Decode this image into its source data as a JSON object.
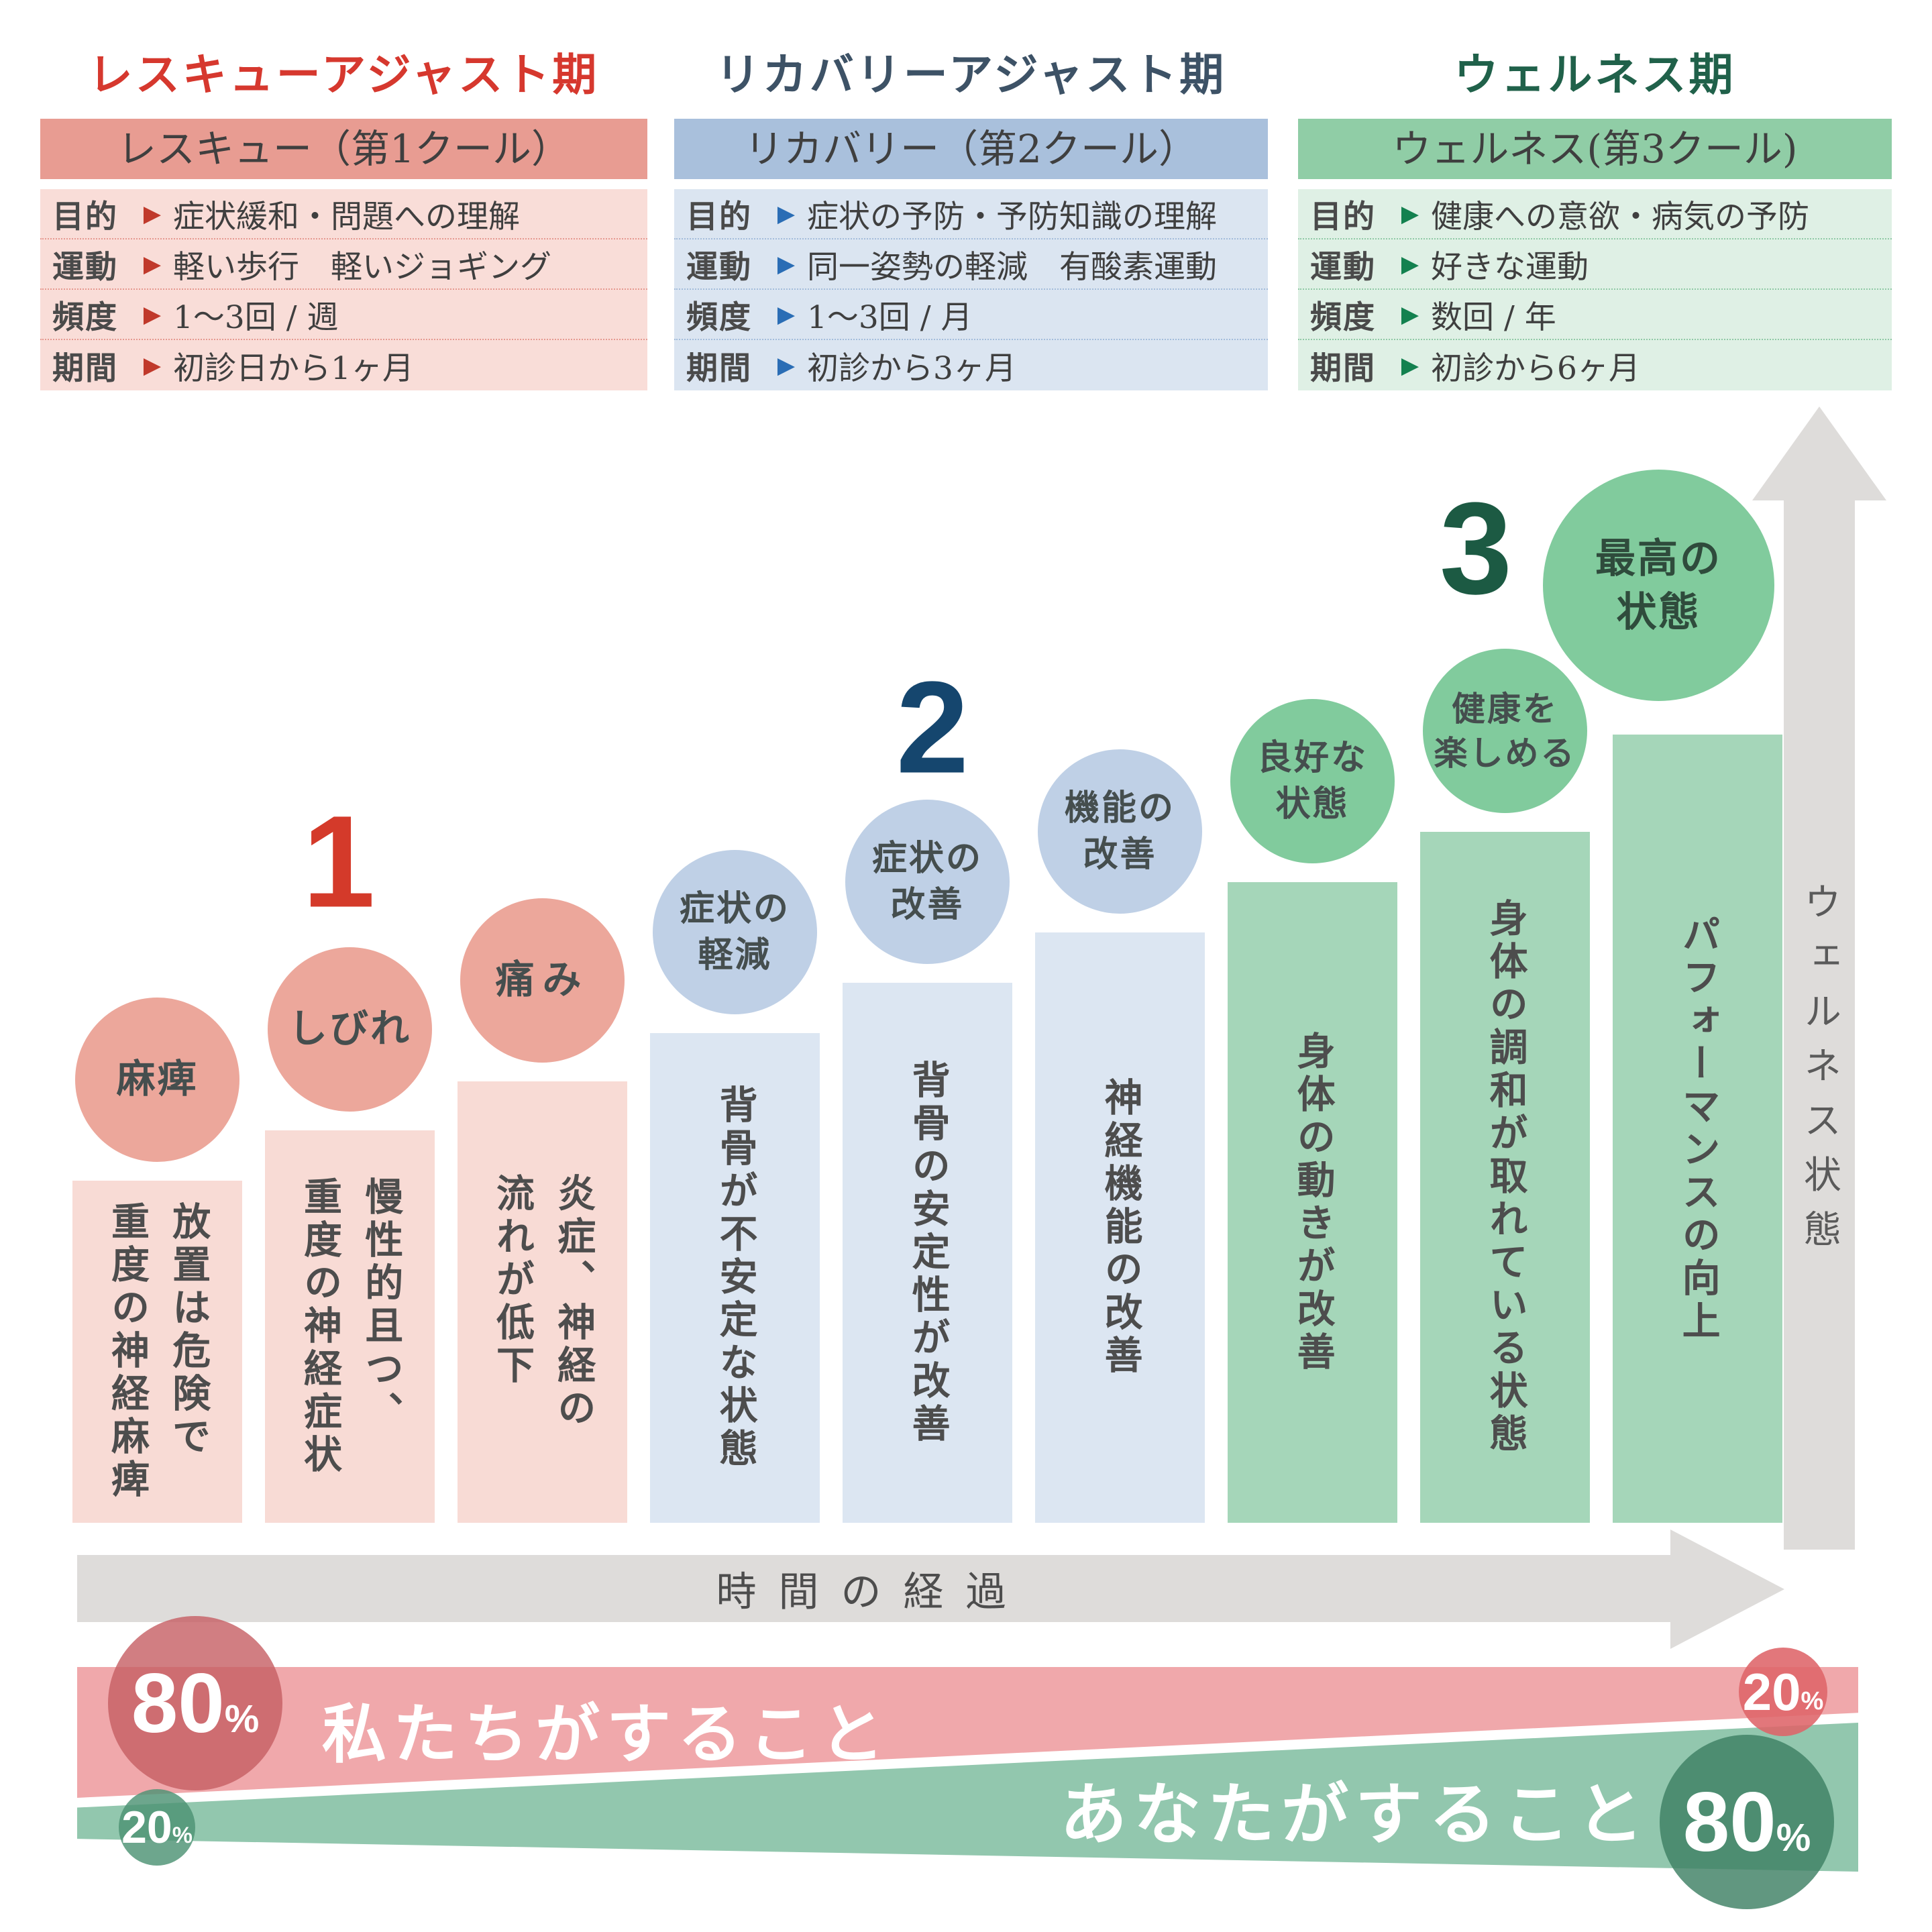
{
  "phases": [
    {
      "title": "レスキューアジャスト期",
      "header": "レスキュー（第1クール）",
      "rows": [
        {
          "label": "目的",
          "value": "症状緩和・問題への理解"
        },
        {
          "label": "運動",
          "value": "軽い歩行　軽いジョギング"
        },
        {
          "label": "頻度",
          "value": "1〜3回 / 週"
        },
        {
          "label": "期間",
          "value": "初診日から1ヶ月"
        }
      ]
    },
    {
      "title": "リカバリーアジャスト期",
      "header": "リカバリー（第2クール）",
      "rows": [
        {
          "label": "目的",
          "value": "症状の予防・予防知識の理解"
        },
        {
          "label": "運動",
          "value": "同一姿勢の軽減　有酸素運動"
        },
        {
          "label": "頻度",
          "value": "1〜3回 / 月"
        },
        {
          "label": "期間",
          "value": "初診から3ヶ月"
        }
      ]
    },
    {
      "title": "ウェルネス期",
      "header": "ウェルネス(第3クール)",
      "rows": [
        {
          "label": "目的",
          "value": "健康への意欲・病気の予防"
        },
        {
          "label": "運動",
          "value": "好きな運動"
        },
        {
          "label": "頻度",
          "value": "数回 / 年"
        },
        {
          "label": "期間",
          "value": "初診から6ヶ月"
        }
      ]
    }
  ],
  "marker": "▶",
  "stage_numbers": [
    "1",
    "2",
    "3"
  ],
  "steps": [
    {
      "badge": "麻痺",
      "body": "放置は危険で\n重度の神経麻痺"
    },
    {
      "badge": "しびれ",
      "body": "慢性的且つ、\n重度の神経症状"
    },
    {
      "badge": "痛み",
      "body": "炎症、神経の\n流れが低下"
    },
    {
      "badge": "症状の\n軽減",
      "body": "背骨が不安定な状態"
    },
    {
      "badge": "症状の\n改善",
      "body": "背骨の安定性が改善"
    },
    {
      "badge": "機能の\n改善",
      "body": "神経機能の改善"
    },
    {
      "badge": "良好な\n状態",
      "body": "身体の動きが改善"
    },
    {
      "badge": "健康を\n楽しめる",
      "body": "身体の調和が取れている状態"
    },
    {
      "badge": "最高の\n状態",
      "body": "パフォーマンスの向上"
    }
  ],
  "axes": {
    "time": "時間の経過",
    "wellness": "ウェルネス状態"
  },
  "share": {
    "we_label": "私たちがすること",
    "we_left_pct": "80",
    "we_right_pct": "20",
    "you_label": "あなたがすること",
    "you_left_pct": "20",
    "you_right_pct": "80",
    "pct": "%"
  },
  "palette": {
    "rescue_accent": "#d6382e",
    "rescue_header": "#e89c92",
    "rescue_body": "#f9ddd8",
    "rescue_bar": "#f8dbd5",
    "rescue_circle": "#eca79b",
    "recovery_accent": "#3d5266",
    "recovery_header": "#a9c0dc",
    "recovery_body": "#dbe5f1",
    "recovery_bar": "#dce6f2",
    "recovery_circle": "#bfd0e6",
    "wellness_accent": "#20614a",
    "wellness_header": "#90cda6",
    "wellness_body": "#dff0e5",
    "wellness_bar": "#a5d6b9",
    "wellness_circle": "#81cb9d",
    "number1": "#d43a2a",
    "number2": "#15466e",
    "number3": "#1c5a43",
    "arrow_gray": "#dedcda",
    "we_band": "#f0a8ab",
    "you_band": "#92c7ae"
  }
}
